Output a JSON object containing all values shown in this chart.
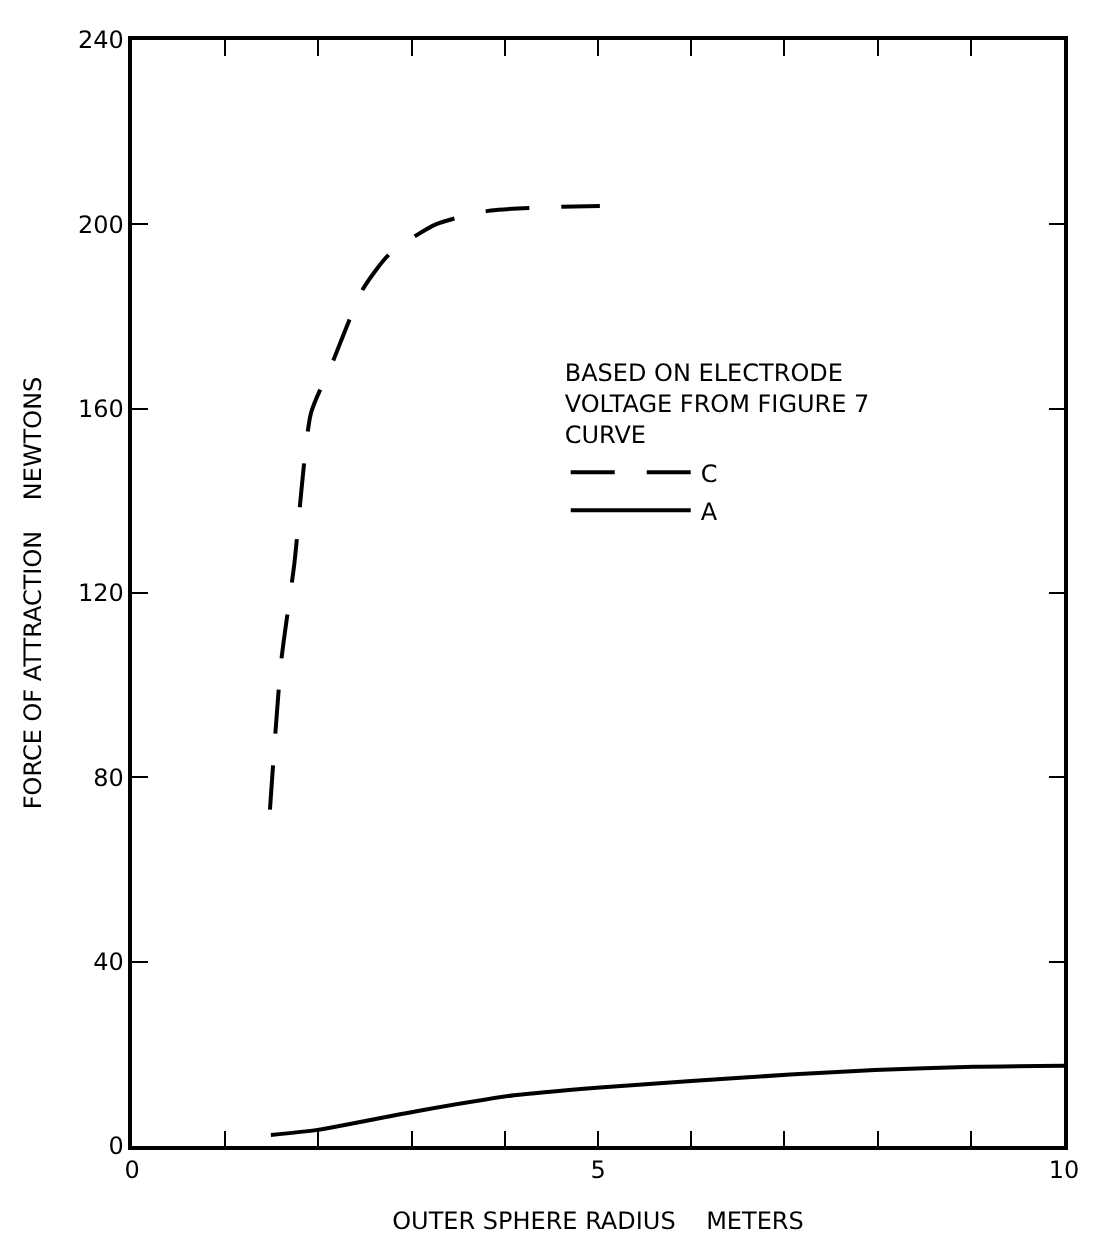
{
  "chart_data": {
    "type": "line",
    "xlabel": "OUTER SPHERE RADIUS    METERS",
    "ylabel": "FORCE OF ATTRACTION    NEWTONS",
    "legend_title": "BASED ON ELECTRODE\nVOLTAGE FROM FIGURE 7\nCURVE",
    "legend": "right",
    "xlim": [
      0,
      10
    ],
    "ylim": [
      0,
      240
    ],
    "xticks": [
      0,
      {
        "value": 1,
        "label": null
      },
      {
        "value": 2,
        "label": null
      },
      {
        "value": 3,
        "label": null
      },
      {
        "value": 4,
        "label": null
      },
      5,
      {
        "value": 6,
        "label": null
      },
      {
        "value": 7,
        "label": null
      },
      {
        "value": 8,
        "label": null
      },
      {
        "value": 9,
        "label": null
      },
      10
    ],
    "yticks": [
      0,
      40,
      80,
      120,
      160,
      200,
      240
    ],
    "marker": "none",
    "series": [
      {
        "name": "C",
        "color": "#000000",
        "line_style": "dashed",
        "x": [
          1.48,
          1.6,
          1.74,
          1.92,
          2.13,
          2.48,
          2.76,
          3.26,
          3.85,
          5.02
        ],
        "values": [
          73,
          105,
          126,
          159,
          169,
          186,
          193.5,
          200,
          203,
          204
        ]
      },
      {
        "name": "A",
        "color": "#000000",
        "line_style": "solid",
        "x": [
          1.49,
          1.99,
          3.04,
          4.1,
          5.02,
          6.0,
          7.06,
          7.97,
          9.03,
          10
        ],
        "values": [
          2.4,
          3.5,
          7.5,
          11,
          12.7,
          14.1,
          15.5,
          16.5,
          17.2,
          17.4
        ]
      }
    ]
  }
}
